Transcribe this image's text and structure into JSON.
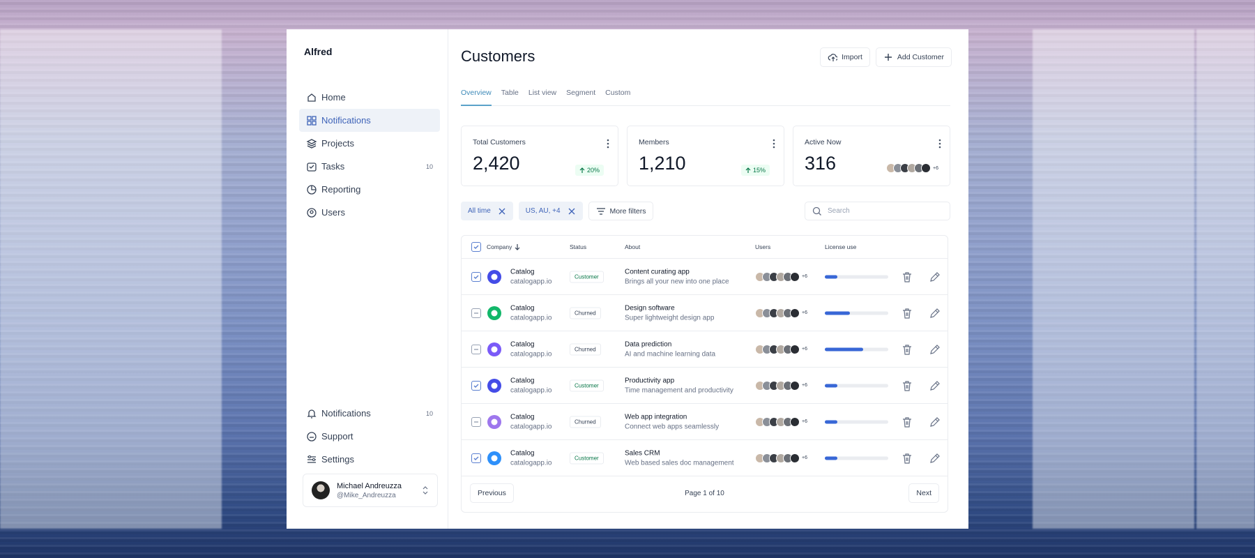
{
  "sidebar": {
    "brand": "Alfred",
    "nav": [
      {
        "label": "Home"
      },
      {
        "label": "Notifications",
        "active": true
      },
      {
        "label": "Projects"
      },
      {
        "label": "Tasks",
        "badge": "10"
      },
      {
        "label": "Reporting"
      },
      {
        "label": "Users"
      }
    ],
    "footer_nav": [
      {
        "label": "Notifications",
        "badge": "10"
      },
      {
        "label": "Support"
      },
      {
        "label": "Settings"
      }
    ],
    "user": {
      "name": "Michael Andreuzza",
      "handle": "@Mike_Andreuzza"
    }
  },
  "header": {
    "title": "Customers",
    "actions": [
      "Import",
      "Add Customer"
    ]
  },
  "tabs": [
    "Overview",
    "Table",
    "List view",
    "Segment",
    "Custom"
  ],
  "stats": [
    {
      "label": "Total Customers",
      "value": "2,420",
      "change": "20%"
    },
    {
      "label": "Members",
      "value": "1,210",
      "change": "15%"
    },
    {
      "label": "Active Now",
      "value": "316",
      "avatars_more": "+6"
    }
  ],
  "filters": [
    "All time",
    "US, AU, +4"
  ],
  "more_filters": "More filters",
  "search_placeholder": "Search",
  "table": {
    "columns": [
      "Company",
      "Status",
      "About",
      "Users",
      "License use"
    ],
    "rows": [
      {
        "selected": true,
        "logo_color": "#444ce7",
        "company": "Catalog",
        "domain": "catalogapp.io",
        "status": "Customer",
        "status_color": "#067647",
        "about": "Content curating app",
        "about_sub": "Brings all your new into one place",
        "users_more": "+6",
        "license": 20
      },
      {
        "selected": false,
        "logo_color": "#12b76a",
        "company": "Catalog",
        "domain": "catalogapp.io",
        "status": "Churned",
        "status_color": "#344054",
        "about": "Design software",
        "about_sub": "Super lightweight design app",
        "users_more": "+6",
        "license": 40
      },
      {
        "selected": false,
        "logo_color": "#7a5af8",
        "company": "Catalog",
        "domain": "catalogapp.io",
        "status": "Churned",
        "status_color": "#344054",
        "about": "Data prediction",
        "about_sub": "AI and machine learning data",
        "users_more": "+6",
        "license": 60
      },
      {
        "selected": true,
        "logo_color": "#444ce7",
        "company": "Catalog",
        "domain": "catalogapp.io",
        "status": "Customer",
        "status_color": "#067647",
        "about": "Productivity app",
        "about_sub": "Time management and productivity",
        "users_more": "+6",
        "license": 20
      },
      {
        "selected": false,
        "logo_color": "#9e77ed",
        "company": "Catalog",
        "domain": "catalogapp.io",
        "status": "Churned",
        "status_color": "#344054",
        "about": "Web app integration",
        "about_sub": "Connect web apps seamlessly",
        "users_more": "+6",
        "license": 20
      },
      {
        "selected": true,
        "logo_color": "#2e90fa",
        "company": "Catalog",
        "domain": "catalogapp.io",
        "status": "Customer",
        "status_color": "#067647",
        "about": "Sales CRM",
        "about_sub": "Web based sales doc management",
        "users_more": "+6",
        "license": 20
      }
    ]
  },
  "pagination": {
    "previous": "Previous",
    "page": "Page 1 of 10",
    "next": "Next"
  }
}
